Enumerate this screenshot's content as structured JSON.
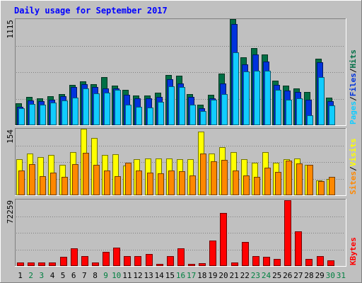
{
  "chart_data": {
    "type": "bar",
    "title": "Daily usage for September 2017",
    "days": [
      "1",
      "2",
      "3",
      "4",
      "5",
      "6",
      "7",
      "8",
      "9",
      "10",
      "11",
      "12",
      "13",
      "14",
      "15",
      "16",
      "17",
      "18",
      "19",
      "20",
      "21",
      "22",
      "23",
      "24",
      "25",
      "26",
      "27",
      "28",
      "29",
      "30",
      "31"
    ],
    "weekend_days": [
      "2",
      "3",
      "9",
      "10",
      "16",
      "17",
      "23",
      "24",
      "30",
      "31"
    ],
    "panels": [
      {
        "id": "hits-files-pages",
        "max_label": "1115",
        "ymax": 1115,
        "series": [
          {
            "name": "Hits",
            "color": "#006f45",
            "values": [
              232,
              296,
              281,
              303,
              328,
              420,
              460,
              432,
              504,
              418,
              374,
              312,
              311,
              342,
              527,
              521,
              325,
              212,
              316,
              542,
              1115,
              710,
              807,
              742,
              465,
              414,
              388,
              347,
              701,
              293,
              null
            ]
          },
          {
            "name": "Files",
            "color": "#0033dd",
            "values": [
              195,
              263,
              251,
              268,
              303,
              399,
              434,
              400,
              390,
              388,
              318,
              284,
              281,
              298,
              481,
              442,
              296,
              182,
              285,
              441,
              1060,
              640,
              744,
              668,
              425,
              367,
              351,
              268,
              661,
              250,
              null
            ]
          },
          {
            "name": "Pages",
            "color": "#11ccff",
            "values": [
              175,
              226,
              218,
              236,
              261,
              292,
              383,
              334,
              340,
              368,
              215,
              196,
              183,
              247,
              406,
              403,
              219,
              145,
              268,
              325,
              762,
              568,
              575,
              571,
              374,
              270,
              280,
              106,
              505,
              209,
              null
            ]
          }
        ],
        "legend": [
          "Pages",
          "/",
          "Files",
          "/",
          "Hits"
        ]
      },
      {
        "id": "visits-sites",
        "max_label": "154",
        "ymax": 154,
        "series": [
          {
            "name": "Visits",
            "color": "#ffff00",
            "values": [
              84,
              97,
              88,
              93,
              70,
              100,
              154,
              132,
              94,
              95,
              68,
              84,
              85,
              85,
              86,
              84,
              83,
              148,
              97,
              112,
              100,
              83,
              75,
              100,
              75,
              84,
              85,
              71,
              34,
              37,
              null
            ]
          },
          {
            "name": "Sites",
            "color": "#ff8800",
            "values": [
              57,
              72,
              44,
              52,
              43,
              72,
              98,
              71,
              57,
              44,
              76,
              57,
              53,
              50,
              58,
              56,
              46,
              96,
              79,
              82,
              58,
              46,
              42,
              64,
              54,
              81,
              74,
              70,
              33,
              43,
              null
            ]
          }
        ],
        "legend": [
          "Sites",
          "/",
          "Visits"
        ]
      },
      {
        "id": "kbytes",
        "max_label": "72259",
        "ymax": 72259,
        "series": [
          {
            "name": "KBytes",
            "color": "#ff0000",
            "values": [
              4200,
              3600,
              3600,
              3800,
              10000,
              19000,
              10500,
              4200,
              15000,
              20000,
              11000,
              11000,
              12800,
              2200,
              11000,
              19500,
              2300,
              3300,
              28000,
              58000,
              3900,
              26000,
              11000,
              10200,
              8000,
              71800,
              38000,
              8000,
              11000,
              6000,
              null
            ]
          }
        ],
        "legend": [
          "KBytes"
        ]
      }
    ],
    "colors": {
      "background": "#c0c0c0",
      "title_text": "#0000ff",
      "weekday_label": "#000000",
      "weekend_label": "#008040"
    }
  }
}
